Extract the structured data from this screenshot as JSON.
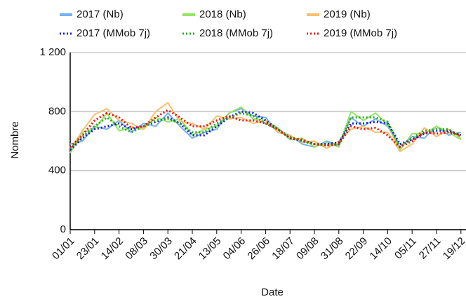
{
  "chart_data": {
    "type": "line",
    "x_label": "Date",
    "y_label": "Nombre",
    "categories": [
      "01/01",
      null,
      "23/01",
      null,
      "14/02",
      null,
      "08/03",
      null,
      "30/03",
      null,
      "21/04",
      null,
      "13/05",
      null,
      "04/06",
      null,
      "26/06",
      null,
      "18/07",
      null,
      "09/08",
      null,
      "31/08",
      null,
      "22/09",
      null,
      "14/10",
      null,
      "05/11",
      null,
      "27/11",
      null,
      "19/12"
    ],
    "ylim": [
      0,
      1200
    ],
    "yticks": [
      0,
      400,
      800,
      {
        "value": 1200,
        "label": "1 200"
      }
    ],
    "grid": true,
    "legend": "top",
    "series": [
      {
        "name": "2017 (Nb)",
        "color": "#74b4f2",
        "style": "solid",
        "values": [
          580,
          600,
          700,
          680,
          740,
          660,
          720,
          700,
          790,
          700,
          620,
          660,
          680,
          790,
          820,
          770,
          760,
          660,
          640,
          580,
          560,
          600,
          570,
          760,
          700,
          750,
          700,
          560,
          630,
          620,
          700,
          640,
          660
        ]
      },
      {
        "name": "2018 (Nb)",
        "color": "#93e661",
        "style": "solid",
        "values": [
          520,
          660,
          680,
          790,
          670,
          690,
          680,
          760,
          730,
          750,
          640,
          680,
          700,
          790,
          830,
          750,
          740,
          690,
          610,
          620,
          560,
          590,
          560,
          800,
          740,
          790,
          710,
          540,
          650,
          650,
          700,
          660,
          610
        ]
      },
      {
        "name": "2019 (Nb)",
        "color": "#f8c06f",
        "style": "solid",
        "values": [
          540,
          670,
          780,
          820,
          740,
          720,
          680,
          800,
          860,
          730,
          720,
          680,
          770,
          750,
          760,
          720,
          740,
          660,
          640,
          590,
          600,
          550,
          600,
          680,
          700,
          660,
          660,
          530,
          580,
          690,
          630,
          680,
          620
        ]
      },
      {
        "name": "2017 (MMob 7j)",
        "color": "#1c1ccc",
        "style": "dotted",
        "values": [
          540,
          620,
          680,
          700,
          720,
          680,
          700,
          730,
          760,
          720,
          640,
          640,
          700,
          760,
          800,
          790,
          740,
          680,
          620,
          600,
          580,
          580,
          590,
          720,
          720,
          730,
          720,
          580,
          610,
          650,
          670,
          670,
          640
        ]
      },
      {
        "name": "2018 (MMob 7j)",
        "color": "#2aa82a",
        "style": "dotted",
        "values": [
          550,
          630,
          700,
          760,
          700,
          660,
          700,
          740,
          750,
          720,
          660,
          660,
          720,
          760,
          790,
          770,
          720,
          680,
          630,
          600,
          580,
          570,
          580,
          760,
          760,
          760,
          730,
          560,
          620,
          670,
          680,
          680,
          630
        ]
      },
      {
        "name": "2019 (MMob 7j)",
        "color": "#e8150f",
        "style": "dotted",
        "values": [
          560,
          640,
          740,
          790,
          760,
          690,
          700,
          760,
          810,
          760,
          700,
          700,
          740,
          770,
          740,
          740,
          720,
          680,
          620,
          610,
          580,
          570,
          580,
          700,
          680,
          690,
          640,
          560,
          600,
          660,
          650,
          660,
          640
        ]
      }
    ]
  }
}
